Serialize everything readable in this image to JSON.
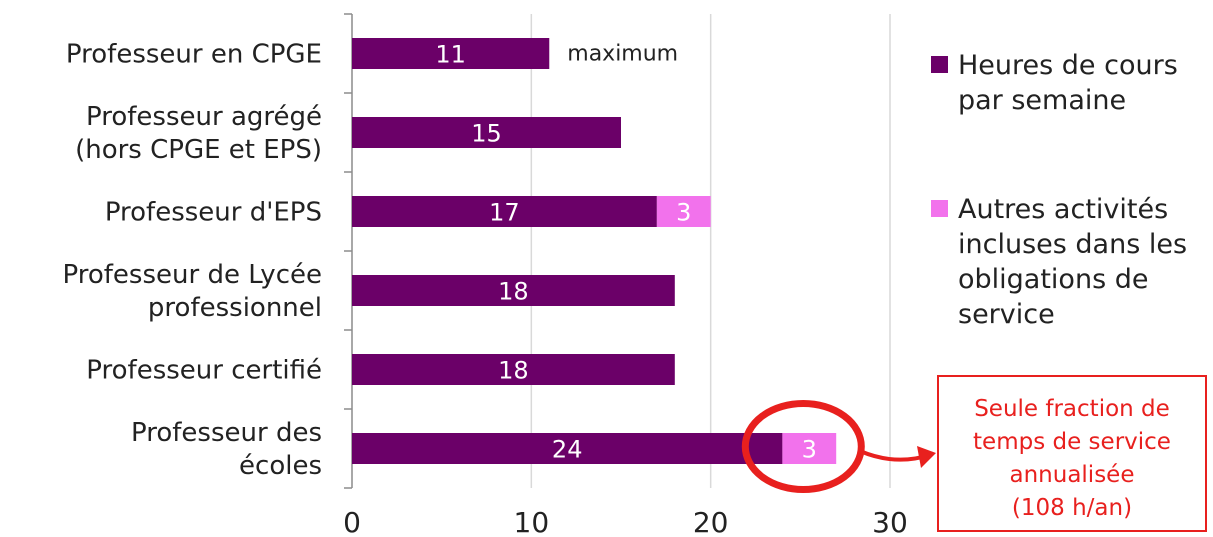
{
  "chart_data": {
    "type": "bar",
    "orientation": "horizontal",
    "stacked": true,
    "categories": [
      "Professeur en CPGE",
      "Professeur agrégé\n(hors CPGE et EPS)",
      "Professeur d'EPS",
      "Professeur de Lycée\nprofessionnel",
      "Professeur certifié",
      "Professeur des\nécoles"
    ],
    "series": [
      {
        "name": "Heures de cours par semaine",
        "color": "#6b0068",
        "values": [
          11,
          15,
          17,
          18,
          18,
          24
        ]
      },
      {
        "name": "Autres activités incluses dans les obligations de service",
        "color": "#f272ec",
        "values": [
          null,
          null,
          3,
          null,
          null,
          3
        ]
      }
    ],
    "xlim": [
      0,
      30
    ],
    "xticks": [
      0,
      10,
      20,
      30
    ],
    "grid": true,
    "legend_position": "right",
    "annotations": {
      "bar_note": "maximum",
      "callout": [
        "Seule fraction de",
        "temps de service",
        "annualisée",
        "(108 h/an)"
      ]
    },
    "colors": {
      "callout": "#e8201e",
      "grid": "#d9d9d9",
      "axis": "#8c8c8c"
    }
  }
}
